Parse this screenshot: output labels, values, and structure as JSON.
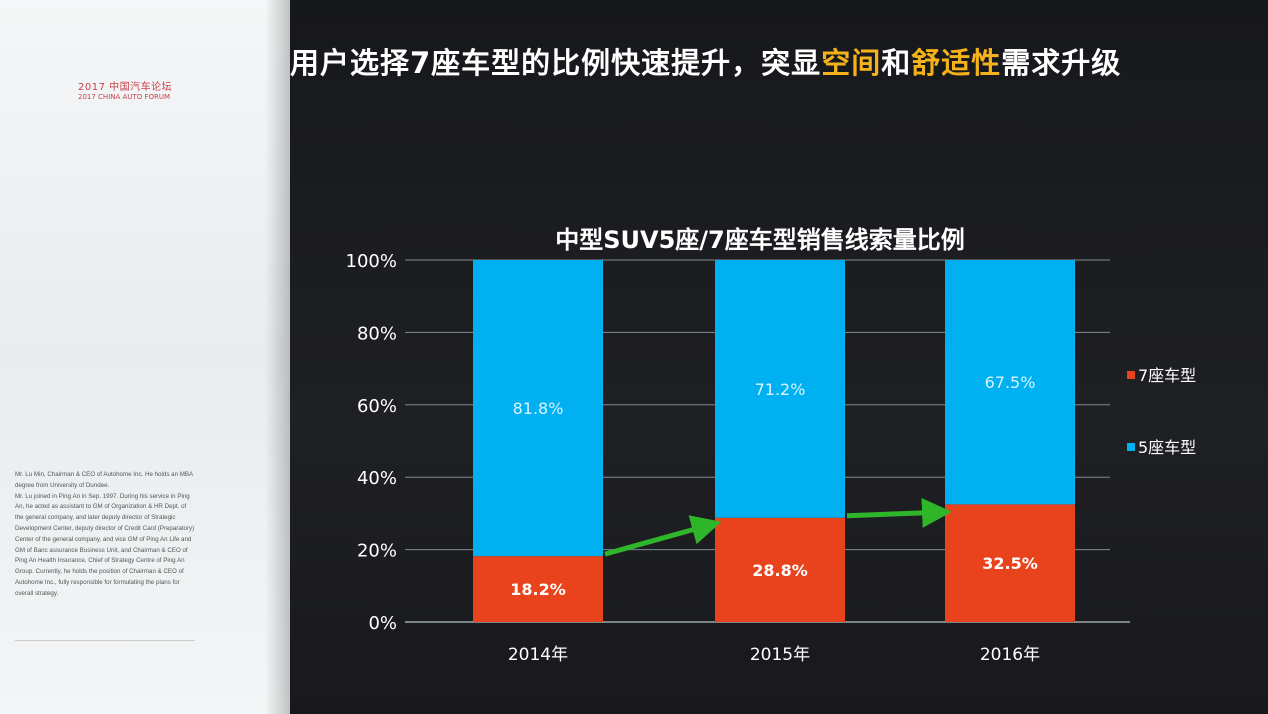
{
  "side_panel": {
    "event_cn": "2017 中国汽车论坛",
    "event_en": "2017 CHINA AUTO FORUM",
    "bio": [
      "Mr. Lu Min, Chairman & CEO of Autohome Inc. He holds an MBA degree from University of Dundee.",
      "Mr. Lu joined in Ping An in Sep. 1997. During his service in Ping An, he acted as assistant to GM of Organization & HR Dept. of the general company, and later deputy director of Strategic Development Center, deputy director of Credit Card (Preparatory) Center of the general company, and vice GM of Ping An Life and GM of Banc assurance Business Unit, and Chairman & CEO of Ping An Health Insurance, Chief of Strategy Centre of Ping An Group. Currently, he holds the position of Chairman & CEO of Autohome Inc., fully responsible for formulating the plans for overall strategy."
    ]
  },
  "slide": {
    "title_parts": [
      "用户选择7座车型的比例快速提升，突显",
      "空间",
      "和",
      "舒适性",
      "需求升级"
    ],
    "highlight_color": "#f5b21a"
  },
  "chart_data": {
    "type": "stacked-bar",
    "title": "中型SUV5座/7座车型销售线索量比例",
    "categories": [
      "2014年",
      "2015年",
      "2016年"
    ],
    "series": [
      {
        "name": "7座车型",
        "color": "#e8431c",
        "values": [
          18.2,
          28.8,
          32.5
        ],
        "labels": [
          "18.2%",
          "28.8%",
          "32.5%"
        ]
      },
      {
        "name": "5座车型",
        "color": "#00b0f0",
        "values": [
          81.8,
          71.2,
          67.5
        ],
        "labels": [
          "81.8%",
          "71.2%",
          "67.5%"
        ]
      }
    ],
    "y_ticks": [
      "0%",
      "20%",
      "40%",
      "60%",
      "80%",
      "100%"
    ],
    "ylim": [
      0,
      100
    ],
    "grid": true,
    "legend": "right",
    "arrow_color": "#2fb52a"
  }
}
